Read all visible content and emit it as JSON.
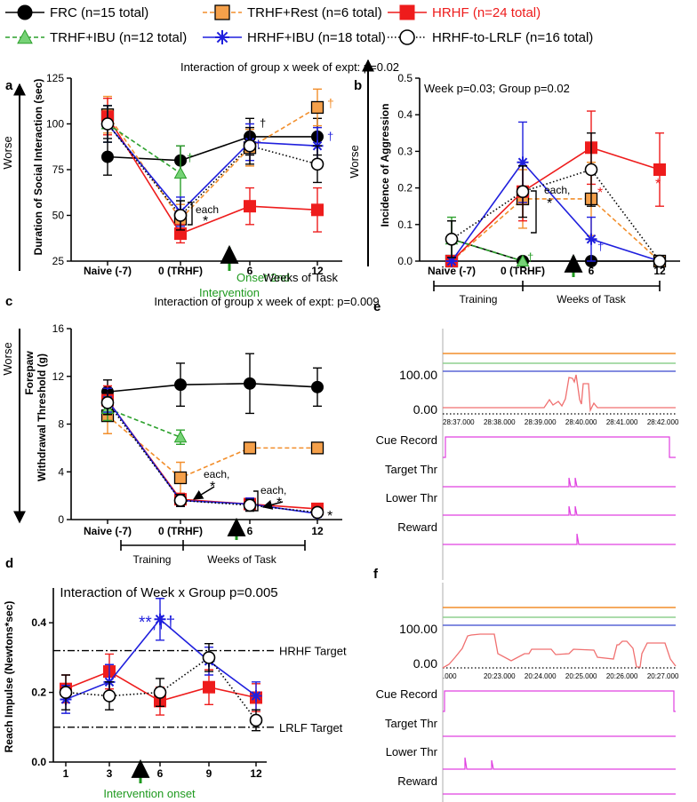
{
  "legend": [
    {
      "key": "FRC",
      "label": "FRC (n=15 total)",
      "color": "#000000",
      "marker": "circle",
      "dash": "solid"
    },
    {
      "key": "TRHF_REST",
      "label": "TRHF+Rest (n=6 total)",
      "color": "#f28e2b",
      "marker": "square",
      "dash": "dashed",
      "fill": "#f5a04a"
    },
    {
      "key": "HRHF",
      "label": "HRHF (n=24 total)",
      "color": "#ee1c1c",
      "marker": "square",
      "dash": "solid"
    },
    {
      "key": "TRHF_IBU",
      "label": "TRHF+IBU (n=12 total)",
      "color": "#2ca02c",
      "marker": "triangle",
      "dash": "dashed",
      "fill": "#76d276"
    },
    {
      "key": "HRHF_IBU",
      "label": "HRHF+IBU (n=18 total)",
      "color": "#1f1fdd",
      "marker": "asterisk",
      "dash": "solid"
    },
    {
      "key": "HRHF_LRLF",
      "label": "HRHF-to-LRLF (n=16 total)",
      "color": "#000000",
      "marker": "open-circle",
      "dash": "dotted"
    }
  ],
  "colors": {
    "green_arrow": "#1f9a1f",
    "red": "#ee1c1c",
    "blue": "#1f1fdd",
    "orange": "#f28e2b",
    "green": "#2ca02c",
    "magenta": "#e040e0",
    "salmon": "#f07070"
  },
  "chart_data": [
    {
      "panel": "a",
      "type": "line",
      "title": "Interaction of group x week of expt: p=0.02",
      "ylabel": "Duration of Social Interaction (sec)",
      "side_label": "Worse",
      "ylim": [
        25,
        125
      ],
      "yticks": [
        25,
        50,
        75,
        100,
        125
      ],
      "x": [
        0,
        1,
        2,
        3
      ],
      "categories": [
        "Naive (-7)",
        "0 (TRHF)",
        "6",
        "12"
      ],
      "xlabel_extra": "Weeks of Task",
      "arrow_label": [
        "Onset 2nd",
        "Intervention"
      ],
      "series": [
        {
          "key": "FRC",
          "points": [
            [
              0,
              82,
              10
            ],
            [
              1,
              80,
              8
            ],
            [
              2,
              93,
              10
            ],
            [
              3,
              93,
              10
            ]
          ]
        },
        {
          "key": "TRHF_REST",
          "points": [
            [
              0,
              105,
              10
            ],
            [
              1,
              48,
              8
            ],
            [
              2,
              87,
              10
            ],
            [
              3,
              109,
              10
            ]
          ]
        },
        {
          "key": "HRHF",
          "points": [
            [
              0,
              104,
              10
            ],
            [
              1,
              40,
              5
            ],
            [
              2,
              55,
              10
            ],
            [
              3,
              53,
              12
            ]
          ]
        },
        {
          "key": "TRHF_IBU",
          "points": [
            [
              0,
              100,
              10
            ],
            [
              1,
              73,
              15
            ]
          ]
        },
        {
          "key": "HRHF_IBU",
          "points": [
            [
              0,
              100,
              10
            ],
            [
              1,
              52,
              8
            ],
            [
              2,
              90,
              10
            ],
            [
              3,
              88,
              10
            ]
          ]
        },
        {
          "key": "HRHF_LRLF",
          "points": [
            [
              0,
              100,
              10
            ],
            [
              1,
              50,
              8
            ],
            [
              2,
              88,
              10
            ],
            [
              3,
              78,
              10
            ]
          ]
        }
      ],
      "annotations": [
        "each",
        "*",
        "†",
        "†",
        "*",
        "†",
        "†",
        "**"
      ]
    },
    {
      "panel": "b",
      "type": "line",
      "title": "Week p=0.03; Group p=0.02",
      "ylabel": "Incidence of Aggression",
      "side_label": "Worse",
      "ylim": [
        0,
        0.5
      ],
      "yticks": [
        "0.0",
        "0.1",
        "0.2",
        "0.3",
        "0.4",
        "0.5"
      ],
      "x": [
        0,
        1,
        2,
        3
      ],
      "categories": [
        "Naive (-7)",
        "0 (TRHF)",
        "6",
        "12"
      ],
      "brackets": [
        "Training",
        "Weeks of Task"
      ],
      "series": [
        {
          "key": "FRC",
          "points": [
            [
              0,
              0.06,
              0.05
            ],
            [
              1,
              0.0,
              0.0
            ],
            [
              2,
              0.0,
              0.0
            ],
            [
              3,
              0.0,
              0.0
            ]
          ]
        },
        {
          "key": "TRHF_REST",
          "points": [
            [
              0,
              0.0,
              0.0
            ],
            [
              1,
              0.17,
              0.08
            ],
            [
              2,
              0.17,
              0.1
            ],
            [
              3,
              0.0,
              0.0
            ]
          ]
        },
        {
          "key": "HRHF",
          "points": [
            [
              0,
              0.0,
              0.0
            ],
            [
              1,
              0.19,
              0.08
            ],
            [
              2,
              0.31,
              0.1
            ],
            [
              3,
              0.25,
              0.1
            ]
          ]
        },
        {
          "key": "TRHF_IBU",
          "points": [
            [
              0,
              0.06,
              0.06
            ],
            [
              1,
              0.0,
              0.0
            ]
          ]
        },
        {
          "key": "HRHF_IBU",
          "points": [
            [
              0,
              0.0,
              0.0
            ],
            [
              1,
              0.27,
              0.11
            ],
            [
              2,
              0.06,
              0.06
            ],
            [
              3,
              0.0,
              0.0
            ]
          ]
        },
        {
          "key": "HRHF_LRLF",
          "points": [
            [
              0,
              0.06,
              0.05
            ],
            [
              1,
              0.19,
              0.07
            ],
            [
              2,
              0.25,
              0.1
            ],
            [
              3,
              0.0,
              0.0
            ]
          ]
        }
      ],
      "annotations": [
        "each,",
        "*",
        "*",
        "*",
        "†",
        "†"
      ]
    },
    {
      "panel": "c",
      "type": "line",
      "title": "Interaction of group x week of expt: p=0.009",
      "ylabel": [
        "Forepaw",
        "Withdrawal Threshold (g)"
      ],
      "side_label": "Worse",
      "ylim": [
        0,
        16
      ],
      "yticks": [
        0,
        4,
        8,
        12,
        16
      ],
      "x": [
        0,
        1,
        2,
        3
      ],
      "categories": [
        "Naive (-7)",
        "0 (TRHF)",
        "6",
        "12"
      ],
      "brackets": [
        "Training",
        "Weeks of Task"
      ],
      "series": [
        {
          "key": "FRC",
          "points": [
            [
              0,
              10.7,
              1.0
            ],
            [
              1,
              11.3,
              1.8
            ],
            [
              2,
              11.4,
              2.5
            ],
            [
              3,
              11.1,
              1.6
            ]
          ]
        },
        {
          "key": "TRHF_REST",
          "points": [
            [
              0,
              8.7,
              1.5
            ],
            [
              1,
              3.5,
              1.3
            ],
            [
              2,
              6.0,
              0.0
            ],
            [
              3,
              6.0,
              0.0
            ]
          ]
        },
        {
          "key": "HRHF",
          "points": [
            [
              0,
              10.0,
              1.2
            ],
            [
              1,
              1.7,
              0.5
            ],
            [
              2,
              1.3,
              0.5
            ],
            [
              3,
              0.9,
              0.3
            ]
          ]
        },
        {
          "key": "TRHF_IBU",
          "points": [
            [
              0,
              9.3,
              1.0
            ],
            [
              1,
              6.9,
              0.6
            ]
          ]
        },
        {
          "key": "HRHF_IBU",
          "points": [
            [
              0,
              10.0,
              1.0
            ],
            [
              1,
              1.6,
              0.5
            ],
            [
              2,
              1.3,
              0.5
            ],
            [
              3,
              0.5,
              0.3
            ]
          ]
        },
        {
          "key": "HRHF_LRLF",
          "points": [
            [
              0,
              9.8,
              1.0
            ],
            [
              1,
              1.6,
              0.5
            ],
            [
              2,
              1.2,
              0.5
            ],
            [
              3,
              0.6,
              0.3
            ]
          ]
        }
      ],
      "annotations": [
        "each,",
        "*",
        "each,",
        "*",
        "*"
      ]
    },
    {
      "panel": "d",
      "type": "line",
      "title": "Interaction of Week x Group p=0.005",
      "ylabel": "Reach Impulse (Newtons*sec)",
      "ylim": [
        0,
        0.5
      ],
      "yticks": [
        "0.0",
        "0.2",
        "0.4"
      ],
      "x": [
        1,
        3,
        6,
        9,
        12
      ],
      "categories": [
        "1",
        "3",
        "6",
        "9",
        "12"
      ],
      "arrow_label": "Intervention onset",
      "reference_lines": [
        {
          "label": "HRHF Target",
          "value": 0.32
        },
        {
          "label": "LRLF Target",
          "value": 0.1
        }
      ],
      "series": [
        {
          "key": "HRHF",
          "points": [
            [
              1,
              0.21,
              0.04
            ],
            [
              3,
              0.26,
              0.05
            ],
            [
              6,
              0.175,
              0.04
            ],
            [
              9,
              0.215,
              0.05
            ],
            [
              12,
              0.185,
              0.04
            ]
          ]
        },
        {
          "key": "HRHF_IBU",
          "points": [
            [
              1,
              0.18,
              0.04
            ],
            [
              3,
              0.23,
              0.05
            ],
            [
              6,
              0.41,
              0.06
            ],
            [
              9,
              0.29,
              0.04
            ],
            [
              12,
              0.19,
              0.04
            ]
          ]
        },
        {
          "key": "HRHF_LRLF",
          "points": [
            [
              1,
              0.2,
              0.05
            ],
            [
              3,
              0.19,
              0.04
            ],
            [
              6,
              0.2,
              0.04
            ],
            [
              9,
              0.3,
              0.04
            ],
            [
              12,
              0.12,
              0.03
            ]
          ]
        }
      ],
      "annotations": [
        "**,††"
      ]
    }
  ],
  "traces": {
    "e": {
      "panel": "e",
      "ytick_top": "100.00",
      "ytick_bottom": "0.00",
      "times": [
        "28:37.000",
        "28:38.000",
        "28:39.000",
        "28:40.000",
        "28:41.000",
        "28:42.000"
      ],
      "time_prefix": "28:37.000",
      "rows": [
        "Cue Record",
        "Target Thr",
        "Lower Thr",
        "Reward"
      ]
    },
    "f": {
      "panel": "f",
      "ytick_top": "100.00",
      "ytick_bottom": "0.00",
      "times": [
        ".000",
        "20:23.000",
        "20:24.000",
        "20:25.000",
        "20:26.000",
        "20:27.000"
      ],
      "rows": [
        "Cue Record",
        "Target Thr",
        "Lower Thr",
        "Reward"
      ]
    }
  }
}
